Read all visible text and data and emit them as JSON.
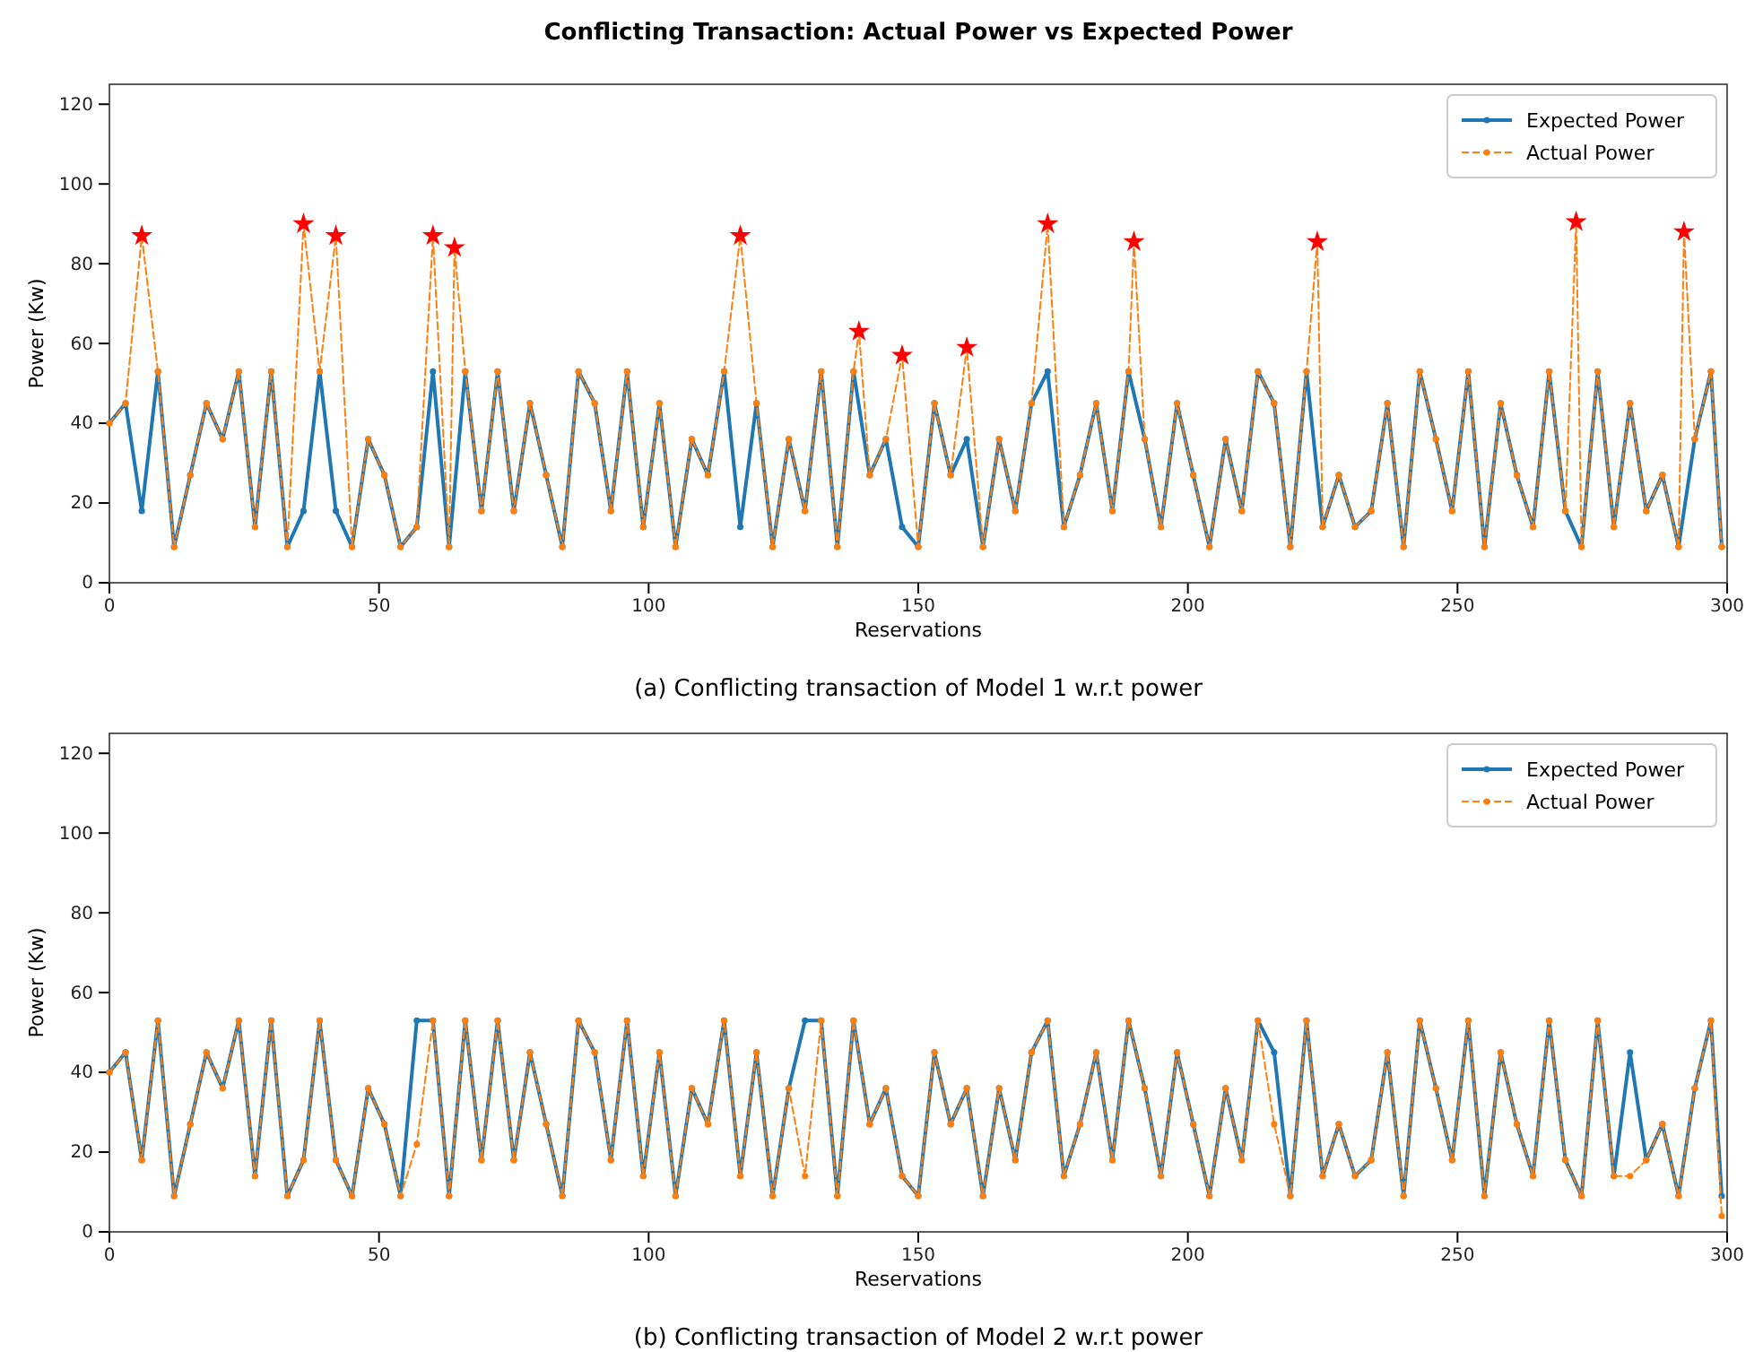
{
  "chart_data": [
    {
      "type": "line",
      "title": "Conflicting Transaction: Actual Power vs Expected Power",
      "xlabel": "Reservations",
      "ylabel": "Power (Kw)",
      "xlim": [
        0,
        300
      ],
      "xticks": [
        0,
        50,
        100,
        150,
        200,
        250,
        300
      ],
      "ylim": [
        0,
        125
      ],
      "yticks": [
        0,
        20,
        40,
        60,
        80,
        100,
        120
      ],
      "legend": "top right",
      "annotations": [
        "(a) Conflicting transaction of Model 1 w.r.t power"
      ],
      "series": [
        {
          "name": "Expected Power",
          "color": "#1f77b4",
          "marker": "circle",
          "line_style": "solid",
          "x": [
            0,
            3,
            6,
            9,
            12,
            15,
            18,
            21,
            24,
            27,
            30,
            33,
            36,
            39,
            42,
            45,
            48,
            51,
            54,
            57,
            60,
            63,
            66,
            69,
            72,
            75,
            78,
            81,
            84,
            87,
            90,
            93,
            96,
            99,
            102,
            105,
            108,
            111,
            114,
            117,
            120,
            123,
            126,
            129,
            132,
            135,
            138,
            141,
            144,
            147,
            150,
            153,
            156,
            159,
            162,
            165,
            168,
            171,
            174,
            177,
            180,
            183,
            186,
            189,
            192,
            195,
            198,
            201,
            204,
            207,
            210,
            213,
            216,
            219,
            222,
            225,
            228,
            231,
            234,
            237,
            240,
            243,
            246,
            249,
            252,
            255,
            258,
            261,
            264,
            267,
            270,
            273,
            276,
            279,
            282,
            285,
            288,
            291,
            294,
            297,
            299
          ],
          "values": [
            40,
            45,
            18,
            53,
            9,
            27,
            45,
            36,
            53,
            14,
            53,
            9,
            18,
            53,
            18,
            9,
            36,
            27,
            9,
            14,
            53,
            9,
            53,
            18,
            53,
            18,
            45,
            27,
            9,
            53,
            45,
            18,
            53,
            14,
            45,
            9,
            36,
            27,
            53,
            14,
            45,
            9,
            36,
            18,
            53,
            9,
            53,
            27,
            36,
            14,
            9,
            45,
            27,
            36,
            9,
            36,
            18,
            45,
            53,
            14,
            27,
            45,
            18,
            53,
            36,
            14,
            45,
            27,
            9,
            36,
            18,
            53,
            45,
            9,
            53,
            14,
            27,
            14,
            18,
            45,
            9,
            53,
            36,
            18,
            53,
            9,
            45,
            27,
            14,
            53,
            18,
            9,
            53,
            14,
            45,
            18,
            27,
            9,
            36,
            53,
            9
          ]
        },
        {
          "name": "Actual Power",
          "color": "#ff7f0e",
          "marker": "circle",
          "line_style": "dashed",
          "x": [
            0,
            3,
            6,
            9,
            12,
            15,
            18,
            21,
            24,
            27,
            30,
            33,
            36,
            39,
            42,
            45,
            48,
            51,
            54,
            57,
            60,
            63,
            64,
            66,
            69,
            72,
            75,
            78,
            81,
            84,
            87,
            90,
            93,
            96,
            99,
            102,
            105,
            108,
            111,
            114,
            117,
            120,
            123,
            126,
            129,
            132,
            135,
            138,
            139,
            141,
            144,
            147,
            150,
            153,
            156,
            159,
            162,
            165,
            168,
            171,
            174,
            177,
            180,
            183,
            186,
            189,
            190,
            192,
            195,
            198,
            201,
            204,
            207,
            210,
            213,
            216,
            219,
            222,
            224,
            225,
            228,
            231,
            234,
            237,
            240,
            243,
            246,
            249,
            252,
            255,
            258,
            261,
            264,
            267,
            270,
            272,
            273,
            276,
            279,
            282,
            285,
            288,
            291,
            292,
            294,
            297,
            299
          ],
          "values": [
            40,
            45,
            87,
            53,
            9,
            27,
            45,
            36,
            53,
            14,
            53,
            9,
            90,
            53,
            87,
            9,
            36,
            27,
            9,
            14,
            87,
            9,
            84,
            53,
            18,
            53,
            18,
            45,
            27,
            9,
            53,
            45,
            18,
            53,
            14,
            45,
            9,
            36,
            27,
            53,
            87,
            45,
            9,
            36,
            18,
            53,
            9,
            53,
            63,
            27,
            36,
            57,
            9,
            45,
            27,
            59,
            9,
            36,
            18,
            45,
            90,
            14,
            27,
            45,
            18,
            53,
            85.5,
            36,
            14,
            45,
            27,
            9,
            36,
            18,
            53,
            45,
            9,
            53,
            85.5,
            14,
            27,
            14,
            18,
            45,
            9,
            53,
            36,
            18,
            53,
            9,
            45,
            27,
            14,
            53,
            18,
            90.5,
            9,
            53,
            14,
            45,
            18,
            27,
            9,
            88,
            36,
            53,
            9
          ]
        },
        {
          "type": "scatter",
          "color": "#ff0000",
          "marker": "star",
          "x": [
            6,
            36,
            42,
            60,
            64,
            117,
            139,
            147,
            159,
            174,
            190,
            224,
            272,
            292
          ],
          "values": [
            87,
            90,
            87,
            87,
            84,
            87,
            63,
            57,
            59,
            90,
            85.5,
            85.5,
            90.5,
            88
          ]
        }
      ]
    },
    {
      "type": "line",
      "xlabel": "Reservations",
      "ylabel": "Power (Kw)",
      "xlim": [
        0,
        300
      ],
      "xticks": [
        0,
        50,
        100,
        150,
        200,
        250,
        300
      ],
      "ylim": [
        0,
        125
      ],
      "yticks": [
        0,
        20,
        40,
        60,
        80,
        100,
        120
      ],
      "legend": "top right",
      "annotations": [
        "(b) Conflicting transaction of Model 2 w.r.t power"
      ],
      "series": [
        {
          "name": "Expected Power",
          "color": "#1f77b4",
          "marker": "circle",
          "line_style": "solid",
          "x": [
            0,
            3,
            6,
            9,
            12,
            15,
            18,
            21,
            24,
            27,
            30,
            33,
            36,
            39,
            42,
            45,
            48,
            51,
            54,
            57,
            60,
            63,
            66,
            69,
            72,
            75,
            78,
            81,
            84,
            87,
            90,
            93,
            96,
            99,
            102,
            105,
            108,
            111,
            114,
            117,
            120,
            123,
            126,
            129,
            132,
            135,
            138,
            141,
            144,
            147,
            150,
            153,
            156,
            159,
            162,
            165,
            168,
            171,
            174,
            177,
            180,
            183,
            186,
            189,
            192,
            195,
            198,
            201,
            204,
            207,
            210,
            213,
            216,
            219,
            222,
            225,
            228,
            231,
            234,
            237,
            240,
            243,
            246,
            249,
            252,
            255,
            258,
            261,
            264,
            267,
            270,
            273,
            276,
            279,
            282,
            285,
            288,
            291,
            294,
            297,
            299
          ],
          "values": [
            40,
            45,
            18,
            53,
            9,
            27,
            45,
            36,
            53,
            14,
            53,
            9,
            18,
            53,
            18,
            9,
            36,
            27,
            9,
            53,
            53,
            9,
            53,
            18,
            53,
            18,
            45,
            27,
            9,
            53,
            45,
            18,
            53,
            14,
            45,
            9,
            36,
            27,
            53,
            14,
            45,
            9,
            36,
            53,
            53,
            9,
            53,
            27,
            36,
            14,
            9,
            45,
            27,
            36,
            9,
            36,
            18,
            45,
            53,
            14,
            27,
            45,
            18,
            53,
            36,
            14,
            45,
            27,
            9,
            36,
            18,
            53,
            45,
            9,
            53,
            14,
            27,
            14,
            18,
            45,
            9,
            53,
            36,
            18,
            53,
            9,
            45,
            27,
            14,
            53,
            18,
            9,
            53,
            14,
            45,
            18,
            27,
            9,
            36,
            53,
            9
          ]
        },
        {
          "name": "Actual Power",
          "color": "#ff7f0e",
          "marker": "circle",
          "line_style": "dashed",
          "x": [
            0,
            3,
            6,
            9,
            12,
            15,
            18,
            21,
            24,
            27,
            30,
            33,
            36,
            39,
            42,
            45,
            48,
            51,
            54,
            57,
            60,
            63,
            66,
            69,
            72,
            75,
            78,
            81,
            84,
            87,
            90,
            93,
            96,
            99,
            102,
            105,
            108,
            111,
            114,
            117,
            120,
            123,
            126,
            129,
            132,
            135,
            138,
            141,
            144,
            147,
            150,
            153,
            156,
            159,
            162,
            165,
            168,
            171,
            174,
            177,
            180,
            183,
            186,
            189,
            192,
            195,
            198,
            201,
            204,
            207,
            210,
            213,
            216,
            219,
            222,
            225,
            228,
            231,
            234,
            237,
            240,
            243,
            246,
            249,
            252,
            255,
            258,
            261,
            264,
            267,
            270,
            273,
            276,
            279,
            282,
            285,
            288,
            291,
            294,
            297,
            299
          ],
          "values": [
            40,
            45,
            18,
            53,
            9,
            27,
            45,
            36,
            53,
            14,
            53,
            9,
            18,
            53,
            18,
            9,
            36,
            27,
            9,
            22,
            53,
            9,
            53,
            18,
            53,
            18,
            45,
            27,
            9,
            53,
            45,
            18,
            53,
            14,
            45,
            9,
            36,
            27,
            53,
            14,
            45,
            9,
            36,
            14,
            53,
            9,
            53,
            27,
            36,
            14,
            9,
            45,
            27,
            36,
            9,
            36,
            18,
            45,
            53,
            14,
            27,
            45,
            18,
            53,
            36,
            14,
            45,
            27,
            9,
            36,
            18,
            53,
            27,
            9,
            53,
            14,
            27,
            14,
            18,
            45,
            9,
            53,
            36,
            18,
            53,
            9,
            45,
            27,
            14,
            53,
            18,
            9,
            53,
            14,
            14,
            18,
            27,
            9,
            36,
            53,
            4
          ]
        }
      ]
    }
  ]
}
